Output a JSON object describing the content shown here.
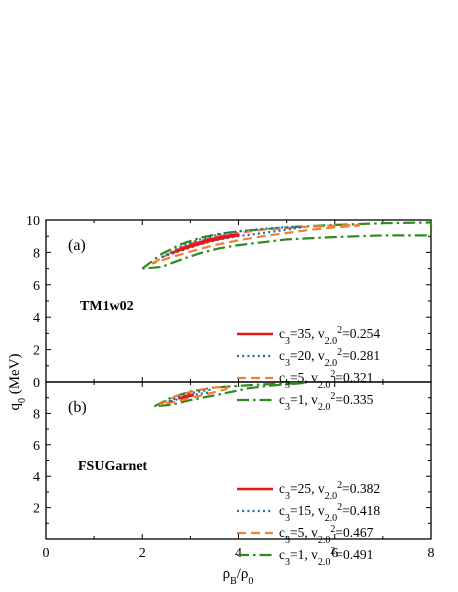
{
  "chart_data": [
    {
      "type": "line",
      "panel": "(a)",
      "model_label": "TM1w02",
      "xlim": [
        0,
        8
      ],
      "ylim": [
        0,
        10
      ],
      "xticks": [
        0,
        2,
        4,
        6,
        8
      ],
      "yticks": [
        0,
        2,
        4,
        6,
        8,
        10
      ],
      "legend_position": "center-right",
      "series": [
        {
          "name_parts": {
            "c3": "35",
            "v": "0.254"
          },
          "color": "#e8161b",
          "dash": "solid",
          "branches": [
            [
              [
                2.6,
                7.95
              ],
              [
                3.0,
                8.35
              ],
              [
                3.4,
                8.7
              ],
              [
                3.8,
                8.95
              ],
              [
                4.0,
                9.05
              ]
            ],
            [
              [
                2.6,
                7.95
              ],
              [
                3.0,
                8.45
              ],
              [
                3.4,
                8.8
              ],
              [
                3.8,
                9.05
              ],
              [
                4.0,
                9.1
              ]
            ]
          ]
        },
        {
          "name_parts": {
            "c3": "20",
            "v": "0.281"
          },
          "color": "#1a6fb4",
          "dash": "dot",
          "branches": [
            [
              [
                2.4,
                7.7
              ],
              [
                2.8,
                8.35
              ],
              [
                3.2,
                8.8
              ],
              [
                3.6,
                9.1
              ],
              [
                4.0,
                9.3
              ],
              [
                4.5,
                9.45
              ],
              [
                5.0,
                9.55
              ],
              [
                5.3,
                9.6
              ]
            ],
            [
              [
                2.4,
                7.7
              ],
              [
                2.8,
                8.1
              ],
              [
                3.2,
                8.5
              ],
              [
                3.6,
                8.8
              ],
              [
                4.0,
                9.0
              ],
              [
                4.5,
                9.2
              ],
              [
                5.0,
                9.4
              ],
              [
                5.3,
                9.55
              ]
            ]
          ]
        },
        {
          "name_parts": {
            "c3": "5",
            "v": "0.321"
          },
          "color": "#f47e35",
          "dash": "dash",
          "branches": [
            [
              [
                2.2,
                7.3
              ],
              [
                2.6,
                8.0
              ],
              [
                3.0,
                8.55
              ],
              [
                3.5,
                8.95
              ],
              [
                4.0,
                9.2
              ],
              [
                4.5,
                9.4
              ],
              [
                5.0,
                9.5
              ],
              [
                5.5,
                9.6
              ],
              [
                6.0,
                9.65
              ],
              [
                6.5,
                9.7
              ]
            ],
            [
              [
                2.2,
                7.3
              ],
              [
                2.6,
                7.7
              ],
              [
                3.0,
                8.05
              ],
              [
                3.5,
                8.45
              ],
              [
                4.0,
                8.75
              ],
              [
                4.5,
                9.0
              ],
              [
                5.0,
                9.2
              ],
              [
                5.5,
                9.4
              ],
              [
                6.0,
                9.55
              ],
              [
                6.5,
                9.65
              ]
            ]
          ]
        },
        {
          "name_parts": {
            "c3": "1",
            "v": "0.335"
          },
          "color": "#2e8a1e",
          "dash": "dashdot",
          "branches": [
            [
              [
                2.0,
                7.0
              ],
              [
                2.4,
                7.9
              ],
              [
                2.8,
                8.5
              ],
              [
                3.2,
                8.9
              ],
              [
                3.6,
                9.15
              ],
              [
                4.0,
                9.3
              ],
              [
                5.0,
                9.55
              ],
              [
                6.0,
                9.7
              ],
              [
                7.0,
                9.8
              ],
              [
                8.0,
                9.85
              ]
            ],
            [
              [
                2.0,
                7.0
              ],
              [
                2.4,
                7.1
              ],
              [
                2.8,
                7.55
              ],
              [
                3.2,
                7.95
              ],
              [
                3.6,
                8.25
              ],
              [
                4.0,
                8.45
              ],
              [
                5.0,
                8.8
              ],
              [
                6.0,
                8.95
              ],
              [
                7.0,
                9.05
              ],
              [
                8.0,
                9.05
              ]
            ]
          ]
        }
      ]
    },
    {
      "type": "line",
      "panel": "(b)",
      "model_label": "FSUGarnet",
      "xlabel": "ρB/ρ0",
      "ylabel": "q0 (MeV)",
      "xlim": [
        0,
        8
      ],
      "ylim": [
        0,
        10
      ],
      "xticks": [
        0,
        2,
        4,
        6,
        8
      ],
      "yticks": [
        2,
        4,
        6,
        8
      ],
      "legend_position": "center-right",
      "series": [
        {
          "name_parts": {
            "c3": "25",
            "v": "0.382"
          },
          "color": "#e8161b",
          "dash": "solid",
          "branches": [
            [
              [
                2.75,
                8.95
              ],
              [
                2.9,
                9.1
              ],
              [
                3.05,
                9.2
              ]
            ],
            [
              [
                2.75,
                8.95
              ],
              [
                2.9,
                9.05
              ],
              [
                3.05,
                9.15
              ]
            ]
          ]
        },
        {
          "name_parts": {
            "c3": "15",
            "v": "0.418"
          },
          "color": "#1a6fb4",
          "dash": "dot",
          "branches": [
            [
              [
                2.55,
                8.75
              ],
              [
                2.8,
                9.1
              ],
              [
                3.1,
                9.35
              ],
              [
                3.4,
                9.5
              ]
            ],
            [
              [
                2.55,
                8.75
              ],
              [
                2.8,
                8.95
              ],
              [
                3.1,
                9.2
              ],
              [
                3.4,
                9.35
              ]
            ]
          ]
        },
        {
          "name_parts": {
            "c3": "5",
            "v": "0.467"
          },
          "color": "#f47e35",
          "dash": "dash",
          "branches": [
            [
              [
                2.35,
                8.55
              ],
              [
                2.7,
                9.1
              ],
              [
                3.1,
                9.45
              ],
              [
                3.5,
                9.65
              ],
              [
                3.75,
                9.7
              ]
            ],
            [
              [
                2.35,
                8.55
              ],
              [
                2.7,
                8.75
              ],
              [
                3.1,
                9.05
              ],
              [
                3.5,
                9.35
              ],
              [
                3.75,
                9.55
              ]
            ]
          ]
        },
        {
          "name_parts": {
            "c3": "1",
            "v": "0.491"
          },
          "color": "#2e8a1e",
          "dash": "dashdot",
          "branches": [
            [
              [
                2.25,
                8.45
              ],
              [
                2.6,
                9.0
              ],
              [
                3.0,
                9.4
              ],
              [
                3.5,
                9.65
              ],
              [
                4.0,
                9.75
              ],
              [
                4.5,
                9.85
              ],
              [
                5.0,
                9.9
              ],
              [
                5.4,
                9.95
              ]
            ],
            [
              [
                2.25,
                8.45
              ],
              [
                2.6,
                8.55
              ],
              [
                3.0,
                8.85
              ],
              [
                3.5,
                9.15
              ],
              [
                3.9,
                9.4
              ],
              [
                4.2,
                9.6
              ],
              [
                4.6,
                9.75
              ],
              [
                5.0,
                9.85
              ],
              [
                5.4,
                9.95
              ]
            ]
          ]
        }
      ]
    }
  ]
}
